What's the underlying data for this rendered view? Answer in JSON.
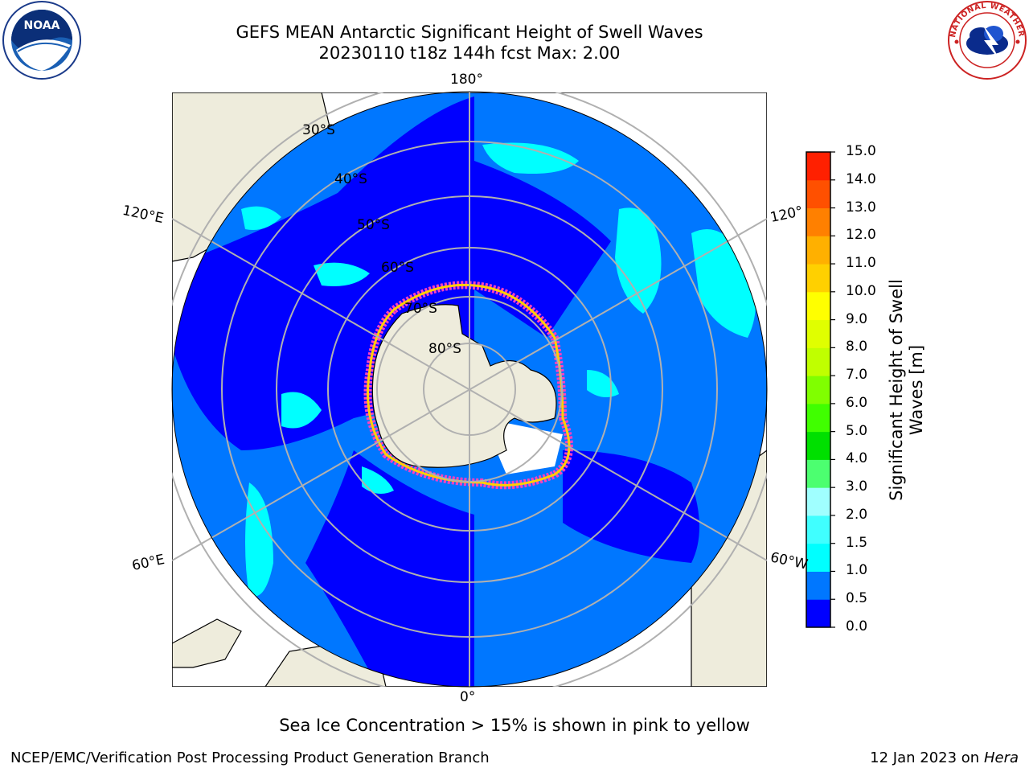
{
  "title_line1": "GEFS MEAN Antarctic Significant Height of Swell Waves",
  "title_line2": "20230110 t18z 144h fcst   Max: 2.00",
  "map": {
    "longitude_labels": {
      "top": "180°",
      "bottom": "0°",
      "upper_left": "120°E",
      "upper_right": "120°",
      "lower_left": "60°E",
      "lower_right": "60°W"
    },
    "latitude_labels": [
      "30°S",
      "40°S",
      "50°S",
      "60°S",
      "70°S",
      "80°S"
    ],
    "colors": {
      "land": "#eeecdc",
      "ocean_0": "#0000ff",
      "ocean_05": "#0077ff",
      "ocean_1": "#00ffff",
      "ice": "#ffffff",
      "graticule": "#b0b0b0"
    }
  },
  "colorbar": {
    "label": "Significant Height of Swell Waves [m]",
    "label_line1": "Significant Height of Swell",
    "label_line2": "Waves [m]",
    "ticks": [
      "0.0",
      "0.5",
      "1.0",
      "1.5",
      "2.0",
      "3.0",
      "4.0",
      "5.0",
      "6.0",
      "7.0",
      "8.0",
      "9.0",
      "10.0",
      "11.0",
      "12.0",
      "13.0",
      "14.0",
      "15.0"
    ],
    "colors": [
      "#0000ff",
      "#0077ff",
      "#00ffff",
      "#40ffff",
      "#a0ffff",
      "#4cff70",
      "#00e000",
      "#40ff00",
      "#80ff00",
      "#c0ff00",
      "#e0ff00",
      "#ffff00",
      "#ffd000",
      "#ffb000",
      "#ff8000",
      "#ff5000",
      "#ff2000"
    ]
  },
  "sea_ice_note": "Sea Ice Concentration > 15% is shown in pink to yellow",
  "footer_left": "NCEP/EMC/Verification Post Processing Product Generation Branch",
  "footer_date": "12 Jan 2023 on",
  "footer_machine": "Hera",
  "logo_left": "NOAA",
  "logo_right": "NATIONAL WEATHER SERVICE"
}
